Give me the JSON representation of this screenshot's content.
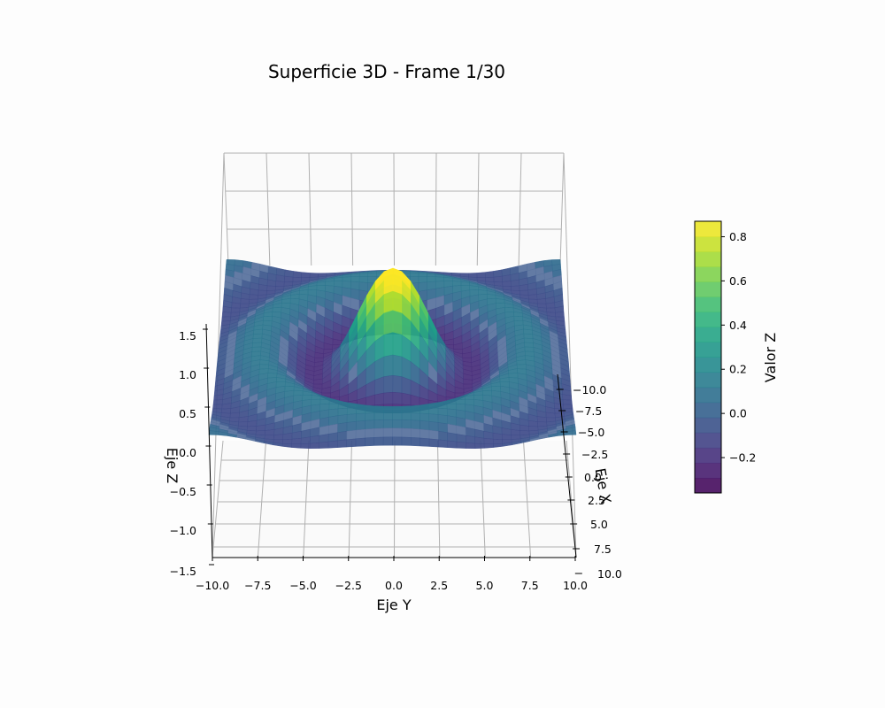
{
  "chart_data": {
    "type": "surface",
    "title": "Superficie 3D - Frame 1/30",
    "function": "z = sin(r) / r, r = sqrt(x^2 + y^2) (sampled surface)",
    "x_axis": {
      "label": "Eje X",
      "range": [
        -10,
        10
      ],
      "tick_labels": [
        "−10.0",
        "−7.5",
        "−5.0",
        "−2.5",
        "0.0",
        "2.5",
        "5.0",
        "7.5",
        "10.0"
      ]
    },
    "y_axis": {
      "label": "Eje Y",
      "range": [
        -10,
        10
      ],
      "tick_labels": [
        "−10.0",
        "−7.5",
        "−5.0",
        "−2.5",
        "0.0",
        "2.5",
        "5.0",
        "7.5",
        "10.0"
      ]
    },
    "z_axis": {
      "label": "Eje Z",
      "range": [
        -1.5,
        1.5
      ],
      "tick_labels": [
        "−1.5",
        "−1.0",
        "−0.5",
        "0.0",
        "0.5",
        "1.0",
        "1.5"
      ]
    },
    "colorbar": {
      "label": "Valor Z",
      "range": [
        -0.36,
        0.87
      ],
      "tick_labels": [
        "−0.2",
        "0.0",
        "0.2",
        "0.4",
        "0.6",
        "0.8"
      ],
      "colormap": "viridis"
    },
    "grid": true
  },
  "colors": {
    "grid": "#b0b0b0",
    "pane": "#ffffff",
    "surface_flat": "#56709c"
  }
}
